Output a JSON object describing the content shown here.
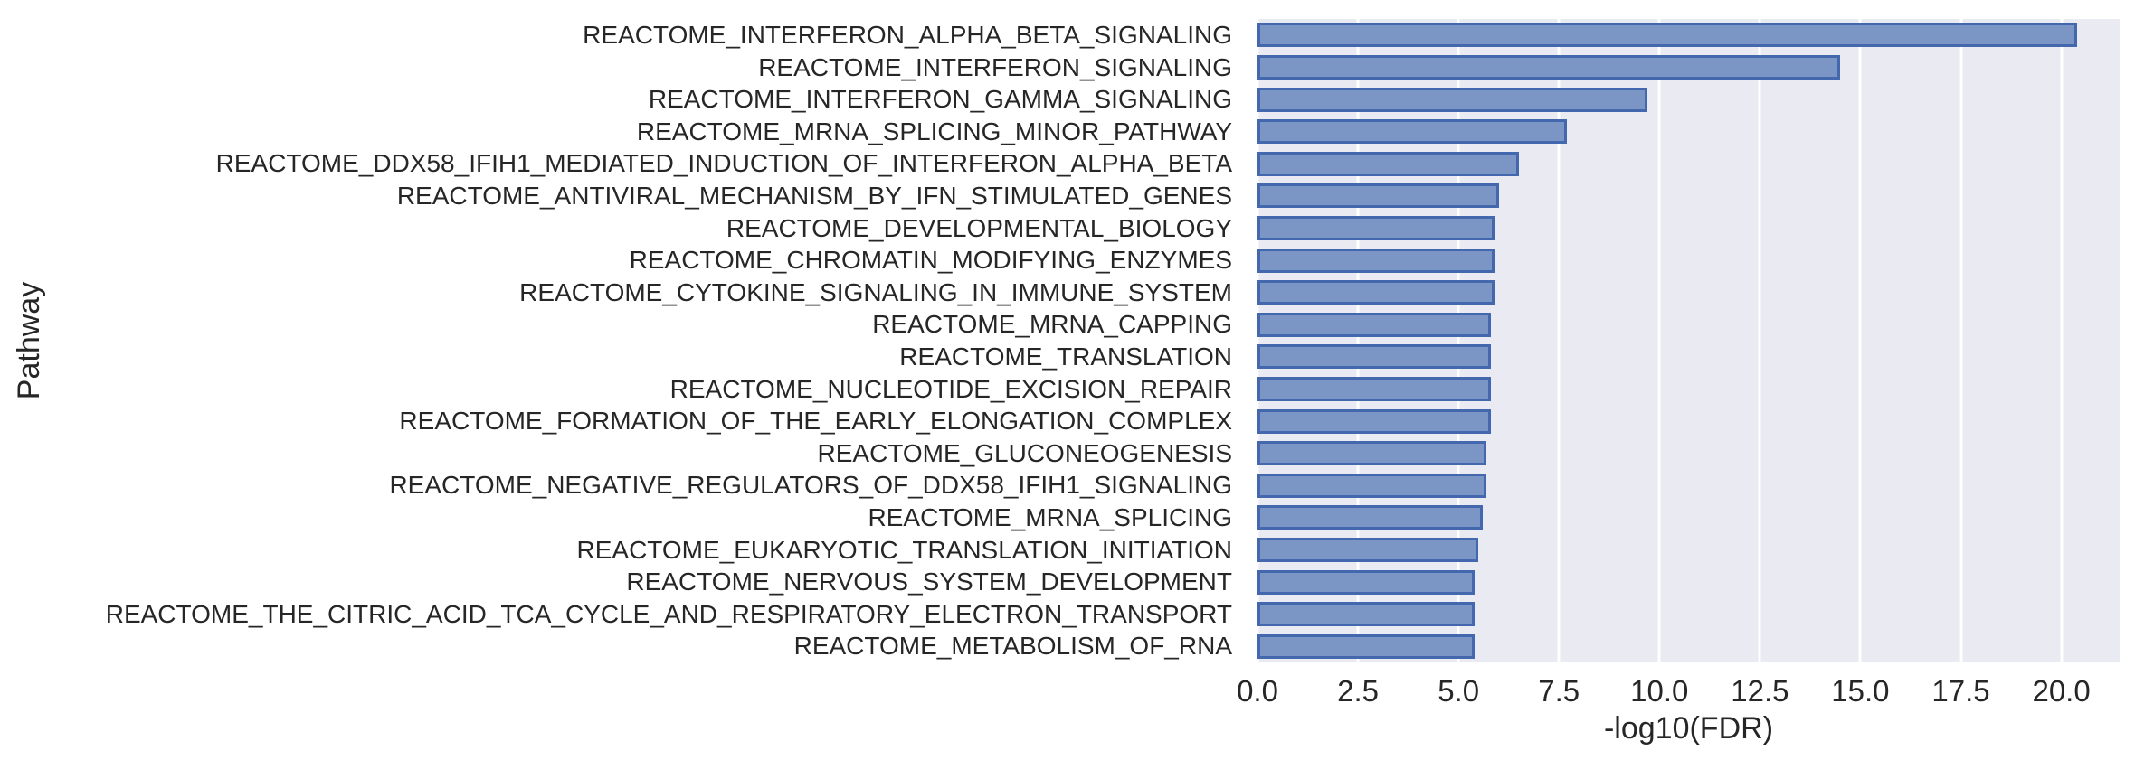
{
  "figure": {
    "background_color": "#ffffff",
    "plot_background_color": "#e9eaf2",
    "grid_color": "#ffffff",
    "bar_fill_color": "#7b96c4",
    "bar_edge_color": "#4468ad",
    "text_color": "#262626"
  },
  "chart_data": {
    "type": "bar",
    "orientation": "horizontal",
    "title": "",
    "xlabel": "-log10(FDR)",
    "ylabel": "Pathway",
    "xlim": [
      0,
      21.45
    ],
    "grid": true,
    "legend": false,
    "xticks": [
      0.0,
      2.5,
      5.0,
      7.5,
      10.0,
      12.5,
      15.0,
      17.5,
      20.0
    ],
    "xtick_labels": [
      "0.0",
      "2.5",
      "5.0",
      "7.5",
      "10.0",
      "12.5",
      "15.0",
      "17.5",
      "20.0"
    ],
    "categories": [
      "REACTOME_INTERFERON_ALPHA_BETA_SIGNALING",
      "REACTOME_INTERFERON_SIGNALING",
      "REACTOME_INTERFERON_GAMMA_SIGNALING",
      "REACTOME_MRNA_SPLICING_MINOR_PATHWAY",
      "REACTOME_DDX58_IFIH1_MEDIATED_INDUCTION_OF_INTERFERON_ALPHA_BETA",
      "REACTOME_ANTIVIRAL_MECHANISM_BY_IFN_STIMULATED_GENES",
      "REACTOME_DEVELOPMENTAL_BIOLOGY",
      "REACTOME_CHROMATIN_MODIFYING_ENZYMES",
      "REACTOME_CYTOKINE_SIGNALING_IN_IMMUNE_SYSTEM",
      "REACTOME_MRNA_CAPPING",
      "REACTOME_TRANSLATION",
      "REACTOME_NUCLEOTIDE_EXCISION_REPAIR",
      "REACTOME_FORMATION_OF_THE_EARLY_ELONGATION_COMPLEX",
      "REACTOME_GLUCONEOGENESIS",
      "REACTOME_NEGATIVE_REGULATORS_OF_DDX58_IFIH1_SIGNALING",
      "REACTOME_MRNA_SPLICING",
      "REACTOME_EUKARYOTIC_TRANSLATION_INITIATION",
      "REACTOME_NERVOUS_SYSTEM_DEVELOPMENT",
      "REACTOME_THE_CITRIC_ACID_TCA_CYCLE_AND_RESPIRATORY_ELECTRON_TRANSPORT",
      "REACTOME_METABOLISM_OF_RNA"
    ],
    "values": [
      20.4,
      14.5,
      9.7,
      7.7,
      6.5,
      6.0,
      5.9,
      5.9,
      5.9,
      5.8,
      5.8,
      5.8,
      5.8,
      5.7,
      5.7,
      5.6,
      5.5,
      5.4,
      5.4,
      5.4
    ]
  }
}
